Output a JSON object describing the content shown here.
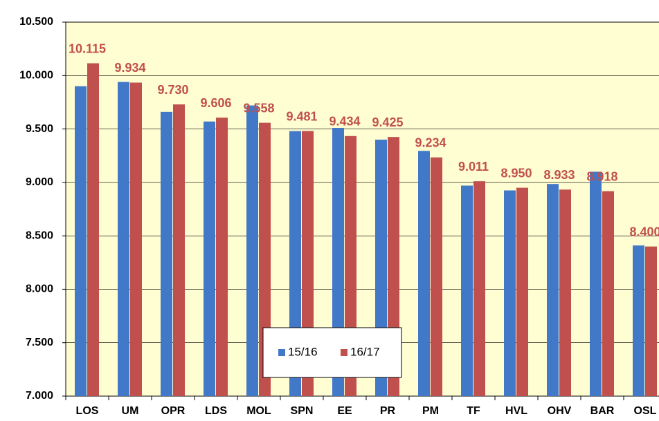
{
  "chart_data": {
    "type": "bar",
    "categories": [
      "LOS",
      "UM",
      "OPR",
      "LDS",
      "MOL",
      "SPN",
      "EE",
      "PR",
      "PM",
      "TF",
      "HVL",
      "OHV",
      "BAR",
      "OSL"
    ],
    "series": [
      {
        "name": "15/16",
        "color": "#4178c8",
        "values": [
          9900,
          9940,
          9660,
          9570,
          9720,
          9480,
          9510,
          9400,
          9295,
          8970,
          8925,
          8985,
          9100,
          8410
        ]
      },
      {
        "name": "16/17",
        "color": "#c0504d",
        "values": [
          10115,
          9934,
          9730,
          9606,
          9558,
          9481,
          9434,
          9425,
          9234,
          9011,
          8950,
          8933,
          8918,
          8400
        ],
        "value_labels": [
          "10.115",
          "9.934",
          "9.730",
          "9.606",
          "9.558",
          "9.481",
          "9.434",
          "9.425",
          "9.234",
          "9.011",
          "8.950",
          "8.933",
          "8.918",
          "8.400"
        ]
      }
    ],
    "ylim": [
      7000,
      10500
    ],
    "yticks": [
      {
        "value": 7000,
        "label": "7.000"
      },
      {
        "value": 7500,
        "label": "7.500"
      },
      {
        "value": 8000,
        "label": "8.000"
      },
      {
        "value": 8500,
        "label": "8.500"
      },
      {
        "value": 9000,
        "label": "9.000"
      },
      {
        "value": 9500,
        "label": "9.500"
      },
      {
        "value": 10000,
        "label": "10.000"
      },
      {
        "value": 10500,
        "label": "10.500"
      }
    ],
    "grid": true,
    "legend": "bottom"
  }
}
